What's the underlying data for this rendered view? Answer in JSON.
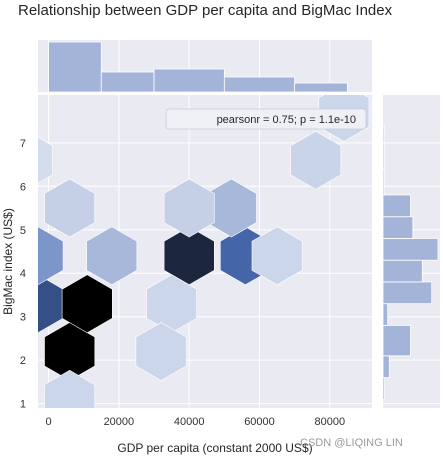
{
  "chart_data": {
    "type": "hexbin",
    "title": "Relationship between GDP per capita and BigMac Index",
    "xlabel": "GDP per capita (constant 2000 US$)",
    "ylabel": "BigMac index (US$)",
    "xlim": [
      -3000,
      92000
    ],
    "ylim": [
      0.9,
      8.1
    ],
    "xticks": [
      0,
      20000,
      40000,
      60000,
      80000
    ],
    "yticks": [
      1,
      2,
      3,
      4,
      5,
      6,
      7
    ],
    "xtick_labels": [
      "0",
      "20000",
      "40000",
      "60000",
      "80000"
    ],
    "ytick_labels": [
      "1",
      "2",
      "3",
      "4",
      "5",
      "6",
      "7"
    ],
    "grid": true,
    "annotation": "pearsonr = 0.75; p = 1.1e-10",
    "color_low": "#dbe2f0",
    "color_high": "#000000",
    "hexbins": [
      {
        "x": -3000,
        "y": 3.3,
        "density": 0.75
      },
      {
        "x": 6000,
        "y": 2.2,
        "density": 1.0
      },
      {
        "x": 11000,
        "y": 3.3,
        "density": 1.0
      },
      {
        "x": -3000,
        "y": 4.4,
        "density": 0.5
      },
      {
        "x": 6000,
        "y": 5.5,
        "density": 0.15
      },
      {
        "x": 18000,
        "y": 4.4,
        "density": 0.35
      },
      {
        "x": 40000,
        "y": 4.4,
        "density": 0.88
      },
      {
        "x": 56000,
        "y": 4.4,
        "density": 0.68
      },
      {
        "x": 52000,
        "y": 5.5,
        "density": 0.35
      },
      {
        "x": 40000,
        "y": 5.5,
        "density": 0.15
      },
      {
        "x": 76000,
        "y": 6.6,
        "density": 0.12
      },
      {
        "x": 84000,
        "y": 7.7,
        "density": 0.1
      },
      {
        "x": 35000,
        "y": 3.3,
        "density": 0.1
      },
      {
        "x": 65000,
        "y": 4.4,
        "density": 0.1
      },
      {
        "x": 32000,
        "y": 2.2,
        "density": 0.1
      },
      {
        "x": 6000,
        "y": 1.1,
        "density": 0.1
      },
      {
        "x": -6000,
        "y": 6.6,
        "density": 0.05
      }
    ],
    "marginal_x": {
      "bin_edges": [
        0,
        15000,
        30000,
        50000,
        70000,
        85000
      ],
      "counts": [
        10,
        4,
        4.6,
        3,
        1.8
      ]
    },
    "marginal_y": {
      "bin_edges": [
        1.1,
        1.6,
        2.1,
        2.8,
        3.3,
        3.8,
        4.3,
        4.8,
        5.3,
        5.8,
        6.4,
        7.0,
        7.4
      ],
      "counts": [
        0.2,
        0.8,
        3.5,
        0.6,
        6.2,
        5.0,
        7.0,
        3.8,
        3.5,
        0.15,
        0.15,
        0.15
      ]
    }
  },
  "watermark": "CSDN @LIQING LIN"
}
